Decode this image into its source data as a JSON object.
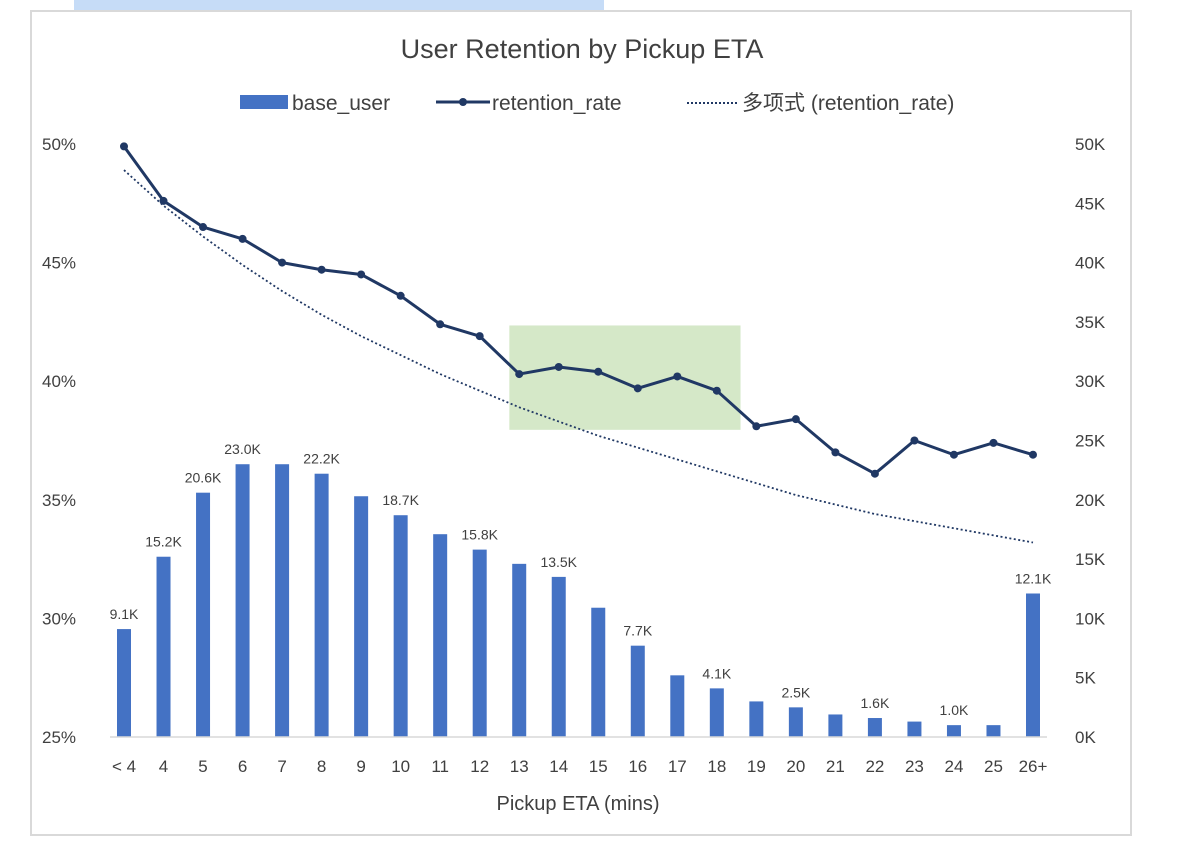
{
  "chart_data": {
    "type": "bar",
    "title": "User Retention by Pickup ETA",
    "xlabel": "Pickup ETA (mins)",
    "ylabel_left": "",
    "ylabel_right": "",
    "categories": [
      "< 4",
      "4",
      "5",
      "6",
      "7",
      "8",
      "9",
      "10",
      "11",
      "12",
      "13",
      "14",
      "15",
      "16",
      "17",
      "18",
      "19",
      "20",
      "21",
      "22",
      "23",
      "24",
      "25",
      "26+"
    ],
    "left_axis": {
      "range": [
        0.25,
        0.5
      ],
      "ticks": [
        "25%",
        "30%",
        "35%",
        "40%",
        "45%",
        "50%"
      ],
      "values": [
        0.25,
        0.3,
        0.35,
        0.4,
        0.45,
        0.5
      ]
    },
    "right_axis": {
      "range": [
        0,
        50000
      ],
      "ticks": [
        "0K",
        "5K",
        "10K",
        "15K",
        "20K",
        "25K",
        "30K",
        "35K",
        "40K",
        "45K",
        "50K"
      ],
      "values": [
        0,
        5000,
        10000,
        15000,
        20000,
        25000,
        30000,
        35000,
        40000,
        45000,
        50000
      ]
    },
    "series": [
      {
        "name": "base_user",
        "type": "bar",
        "axis": "right",
        "color": "#4472c4",
        "values": [
          9100,
          15200,
          20600,
          23000,
          23000,
          22200,
          20300,
          18700,
          17100,
          15800,
          14600,
          13500,
          10900,
          7700,
          5200,
          4100,
          3000,
          2500,
          1900,
          1600,
          1300,
          1000,
          1000,
          12100
        ],
        "data_labels": [
          "9.1K",
          "15.2K",
          "20.6K",
          "23.0K",
          "",
          "22.2K",
          "",
          "18.7K",
          "",
          "15.8K",
          "",
          "13.5K",
          "",
          "7.7K",
          "",
          "4.1K",
          "",
          "2.5K",
          "",
          "1.6K",
          "",
          "1.0K",
          "",
          "12.1K"
        ]
      },
      {
        "name": "retention_rate",
        "type": "line",
        "axis": "left",
        "color": "#203864",
        "values": [
          0.499,
          0.476,
          0.465,
          0.46,
          0.45,
          0.447,
          0.445,
          0.436,
          0.424,
          0.419,
          0.403,
          0.406,
          0.404,
          0.397,
          0.402,
          0.396,
          0.381,
          0.384,
          0.37,
          0.361,
          0.375,
          0.369,
          0.374,
          0.369
        ]
      },
      {
        "name": "多项式 (retention_rate)",
        "type": "trendline",
        "axis": "left",
        "color": "#203864",
        "values": [
          0.489,
          0.474,
          0.461,
          0.449,
          0.438,
          0.428,
          0.419,
          0.411,
          0.403,
          0.396,
          0.389,
          0.383,
          0.377,
          0.372,
          0.367,
          0.362,
          0.357,
          0.352,
          0.348,
          0.344,
          0.341,
          0.338,
          0.335,
          0.332
        ]
      }
    ],
    "highlight": {
      "from_category": "13",
      "to_category": "18",
      "y_range": [
        0.3795,
        0.4235
      ],
      "color": "#d5e8c8"
    },
    "legend": "top-center",
    "grid": false
  }
}
